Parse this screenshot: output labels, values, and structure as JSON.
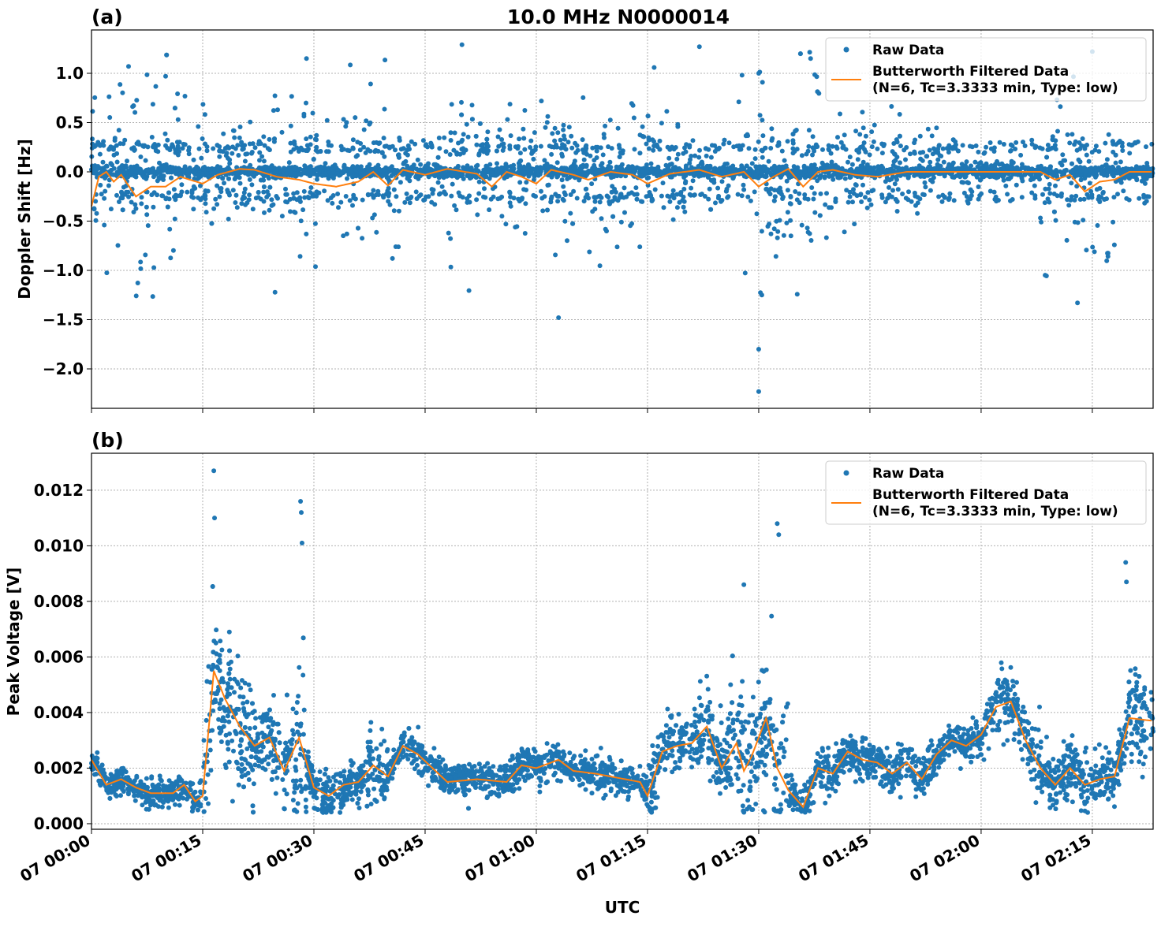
{
  "figure_title": "10.0 MHz N0000014",
  "chart_data": [
    {
      "type": "scatter",
      "panel_label": "(a)",
      "title": "10.0 MHz N0000014",
      "xlabel": "",
      "ylabel": "Doppler Shift [Hz]",
      "xlim_minutes": [
        0,
        143.2
      ],
      "ylim": [
        -2.4,
        1.44
      ],
      "yticks": [
        -2.0,
        -1.5,
        -1.0,
        -0.5,
        0.0,
        0.5,
        1.0
      ],
      "ytick_labels": [
        "−2.0",
        "−1.5",
        "−1.0",
        "−0.5",
        "0.0",
        "0.5",
        "1.0"
      ],
      "grid": true,
      "legend": {
        "placement": "top-right",
        "entries": [
          "Raw Data",
          "Butterworth Filtered Data",
          "(N=6, Tc=3.3333 min, Type: low)"
        ]
      },
      "series": [
        {
          "name": "Raw Data",
          "kind": "scatter",
          "color": "#1f77b4",
          "noise_segments": [
            [
              0,
              15,
              0.38
            ],
            [
              15,
              17,
              0.35
            ],
            [
              17,
              23,
              0.2
            ],
            [
              23,
              42,
              0.32
            ],
            [
              42,
              48,
              0.12
            ],
            [
              48,
              62,
              0.3
            ],
            [
              62,
              80,
              0.28
            ],
            [
              80,
              86,
              0.12
            ],
            [
              86,
              100,
              0.4
            ],
            [
              100,
              108,
              0.2
            ],
            [
              108,
              115,
              0.15
            ],
            [
              115,
              128,
              0.05
            ],
            [
              128,
              138,
              0.45
            ],
            [
              138,
              143.2,
              0.05
            ]
          ],
          "outliers": [
            [
              5,
              1.07
            ],
            [
              10,
              0.97
            ],
            [
              29,
              1.15
            ],
            [
              63,
              -1.48
            ],
            [
              82,
              1.27
            ],
            [
              90,
              1.0
            ],
            [
              90,
              -1.8
            ],
            [
              90,
              -2.23
            ],
            [
              97,
              1.15
            ],
            [
              133,
              -1.33
            ],
            [
              135,
              1.22
            ]
          ]
        },
        {
          "name": "Butterworth Filtered Data (N=6, Tc=3.3333 min, Type: low)",
          "kind": "line",
          "color": "#ff7f0e",
          "x_minutes": [
            0,
            1,
            2,
            3,
            4,
            6,
            8,
            10,
            12,
            15,
            17,
            20,
            22,
            25,
            28,
            30,
            33,
            36,
            38,
            40,
            42,
            45,
            48,
            52,
            54,
            56,
            58,
            60,
            62,
            65,
            67,
            70,
            73,
            75,
            78,
            82,
            85,
            88,
            90,
            92,
            94,
            96,
            98,
            100,
            103,
            106,
            110,
            115,
            120,
            125,
            128,
            130,
            132,
            134,
            136,
            138,
            140,
            143.2
          ],
          "y": [
            -0.35,
            -0.05,
            0,
            -0.1,
            -0.03,
            -0.25,
            -0.15,
            -0.15,
            -0.05,
            -0.12,
            -0.03,
            0.03,
            0.02,
            -0.05,
            -0.08,
            -0.12,
            -0.15,
            -0.1,
            0,
            -0.14,
            0.02,
            -0.03,
            0.03,
            -0.02,
            -0.15,
            0,
            -0.05,
            -0.12,
            0.02,
            -0.03,
            -0.08,
            0,
            -0.03,
            -0.12,
            -0.02,
            0.02,
            -0.05,
            0,
            -0.15,
            -0.05,
            0.03,
            -0.15,
            0,
            0.02,
            -0.03,
            -0.05,
            0,
            0,
            0,
            0,
            0,
            -0.08,
            -0.03,
            -0.2,
            -0.1,
            -0.08,
            0,
            0
          ]
        }
      ]
    },
    {
      "type": "scatter",
      "panel_label": "(b)",
      "title": "",
      "xlabel": "UTC",
      "ylabel": "Peak Voltage [V]",
      "xlim_minutes": [
        0,
        143.2
      ],
      "ylim": [
        -0.0002,
        0.01333
      ],
      "yticks": [
        0,
        0.002,
        0.004,
        0.006,
        0.008,
        0.01,
        0.012
      ],
      "ytick_labels": [
        "0.000",
        "0.002",
        "0.004",
        "0.006",
        "0.008",
        "0.010",
        "0.012"
      ],
      "xticks_minutes": [
        0,
        15,
        30,
        45,
        60,
        75,
        90,
        105,
        120,
        135
      ],
      "xtick_labels": [
        "07 00:00",
        "07 00:15",
        "07 00:30",
        "07 00:45",
        "07 01:00",
        "07 01:15",
        "07 01:30",
        "07 01:45",
        "07 02:00",
        "07 02:15"
      ],
      "grid": true,
      "legend": {
        "placement": "top-right",
        "entries": [
          "Raw Data",
          "Butterworth Filtered Data",
          "(N=6, Tc=3.3333 min, Type: low)"
        ]
      },
      "series": [
        {
          "name": "Raw Data",
          "kind": "scatter",
          "color": "#1f77b4",
          "noise_segments": [
            [
              0,
              15,
              0.00025
            ],
            [
              15,
              22,
              0.0012
            ],
            [
              22,
              27,
              0.0007
            ],
            [
              27,
              29,
              0.0015
            ],
            [
              29,
              37,
              0.0004
            ],
            [
              37,
              40,
              0.0008
            ],
            [
              40,
              75,
              0.0003
            ],
            [
              75,
              86,
              0.0006
            ],
            [
              86,
              94,
              0.0012
            ],
            [
              94,
              120,
              0.00035
            ],
            [
              120,
              127,
              0.0006
            ],
            [
              127,
              140,
              0.0005
            ],
            [
              140,
              143.2,
              0.0009
            ]
          ],
          "outliers": [
            [
              16.5,
              0.0127
            ],
            [
              16.6,
              0.011
            ],
            [
              28.2,
              0.0116
            ],
            [
              28.3,
              0.0112
            ],
            [
              28.4,
              0.0101
            ],
            [
              88,
              0.0086
            ],
            [
              92.5,
              0.0108
            ],
            [
              92.7,
              0.0104
            ],
            [
              139.5,
              0.0094
            ],
            [
              139.6,
              0.0087
            ]
          ]
        },
        {
          "name": "Butterworth Filtered Data (N=6, Tc=3.3333 min, Type: low)",
          "kind": "line",
          "color": "#ff7f0e",
          "x_minutes": [
            0,
            2,
            4,
            6,
            8,
            11,
            12.5,
            14,
            15,
            16.5,
            18,
            20,
            22,
            24,
            26,
            28,
            30,
            32,
            34,
            36,
            38,
            40,
            42,
            44,
            46,
            48,
            52,
            56,
            58,
            60,
            63,
            65,
            68,
            72,
            74,
            75,
            77,
            79,
            81,
            83,
            85,
            87,
            88,
            89,
            91,
            92.5,
            94,
            96,
            98,
            100,
            102,
            104,
            106,
            108,
            110,
            112,
            114,
            116,
            118,
            120,
            122,
            124,
            126,
            128,
            130,
            132,
            134,
            136,
            138,
            140,
            143.2
          ],
          "y": [
            0.0023,
            0.0014,
            0.0016,
            0.0013,
            0.0011,
            0.0011,
            0.0014,
            0.0008,
            0.001,
            0.0055,
            0.0045,
            0.0035,
            0.0028,
            0.0031,
            0.0019,
            0.0031,
            0.0013,
            0.001,
            0.0014,
            0.0015,
            0.0021,
            0.0017,
            0.0028,
            0.0025,
            0.002,
            0.0015,
            0.0016,
            0.0015,
            0.0021,
            0.002,
            0.0023,
            0.0019,
            0.0018,
            0.0016,
            0.0015,
            0.001,
            0.0026,
            0.0028,
            0.0029,
            0.0035,
            0.002,
            0.0029,
            0.0019,
            0.0024,
            0.0038,
            0.002,
            0.0012,
            0.0006,
            0.002,
            0.0018,
            0.0026,
            0.0023,
            0.0022,
            0.0018,
            0.0022,
            0.0016,
            0.0025,
            0.003,
            0.0028,
            0.0032,
            0.0042,
            0.0044,
            0.003,
            0.002,
            0.0014,
            0.002,
            0.0014,
            0.0016,
            0.0017,
            0.0038,
            0.0037
          ]
        }
      ]
    }
  ]
}
